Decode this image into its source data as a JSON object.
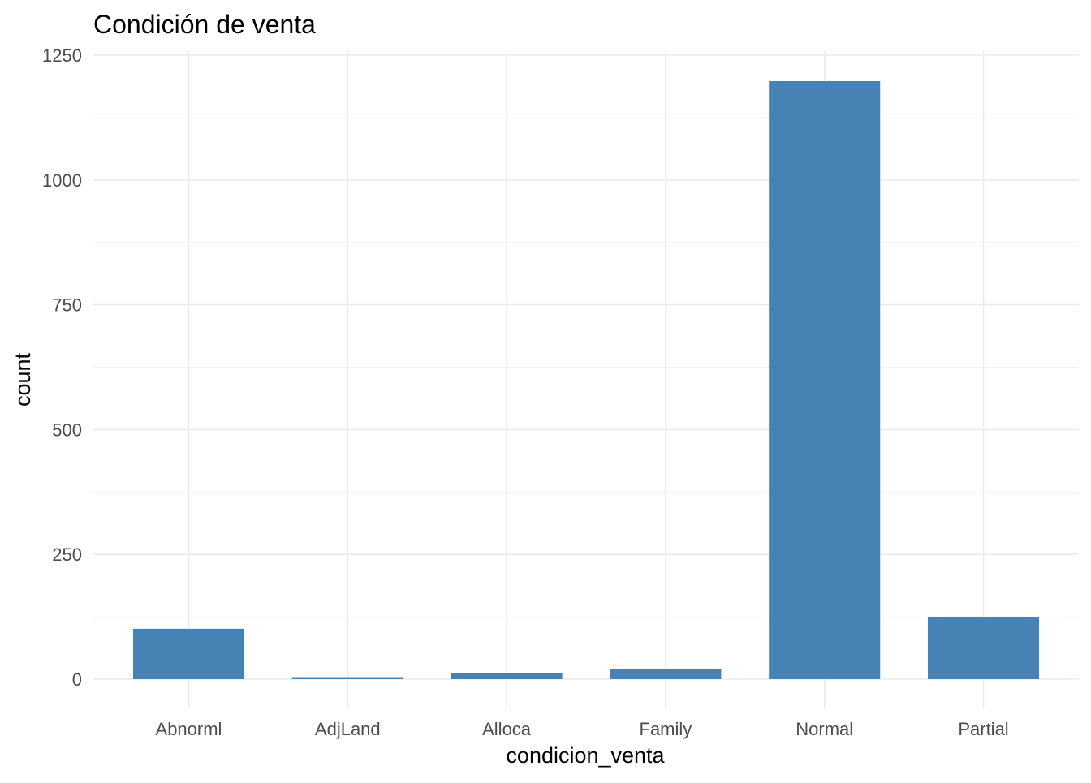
{
  "chart_data": {
    "type": "bar",
    "title": "Condición de venta",
    "xlabel": "condicion_venta",
    "ylabel": "count",
    "categories": [
      "Abnorml",
      "AdjLand",
      "Alloca",
      "Family",
      "Normal",
      "Partial"
    ],
    "values": [
      101,
      4,
      12,
      20,
      1198,
      125
    ],
    "ylim": [
      -60,
      1250
    ],
    "yticks": [
      0,
      250,
      500,
      750,
      1000,
      1250
    ],
    "ytick_labels": [
      "0",
      "250",
      "500",
      "750",
      "1000",
      "1250"
    ],
    "grid": true,
    "bar_color": "#4682B4"
  }
}
